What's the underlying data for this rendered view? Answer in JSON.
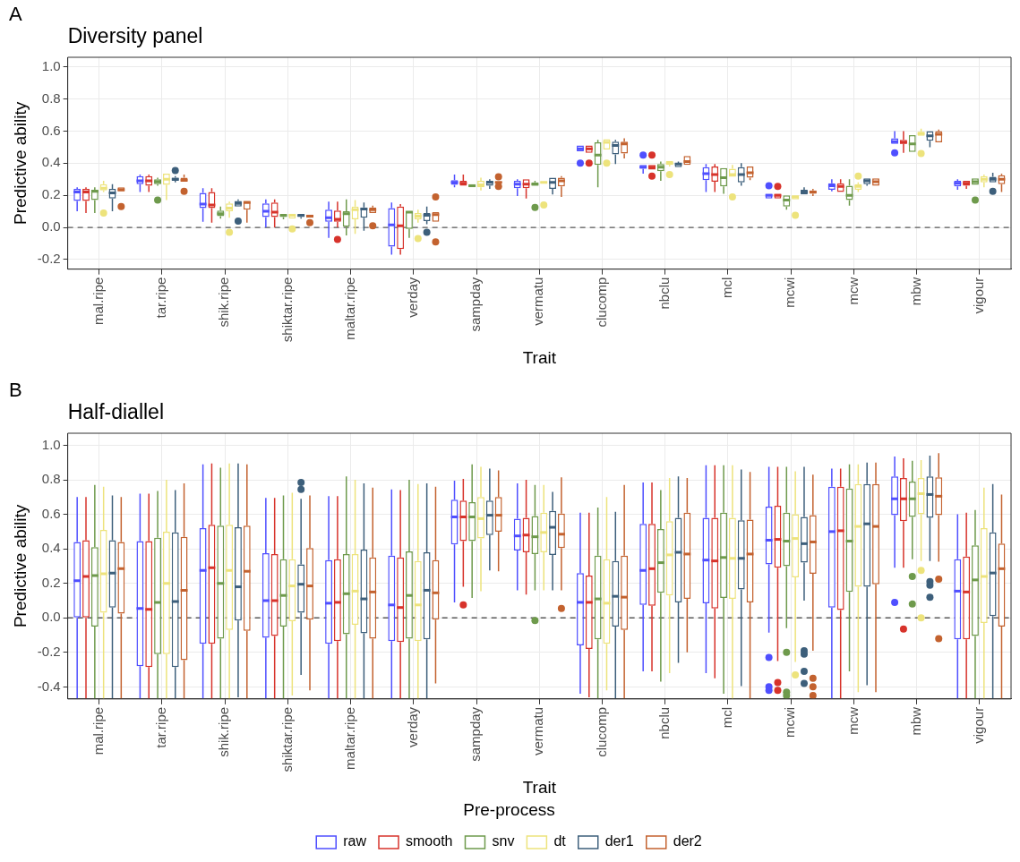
{
  "chart_data": [
    {
      "type": "box",
      "title": "Diversity panel",
      "xlabel": "Trait",
      "ylabel": "Predictive ability",
      "annotations": [
        "A"
      ],
      "categories": [
        "mal.ripe",
        "tar.ripe",
        "shik.ripe",
        "shiktar.ripe",
        "maltar.ripe",
        "verday",
        "sampday",
        "vermatu",
        "clucomp",
        "nbclu",
        "mcl",
        "mcwi",
        "mcw",
        "mbw",
        "vigour"
      ],
      "ylim": [
        -0.26,
        1.06
      ],
      "yticks": [
        {
          "value": -0.2,
          "label": "-0.2"
        },
        {
          "value": 0,
          "label": "0.0"
        },
        {
          "value": 0.2,
          "label": "0.2"
        },
        {
          "value": 0.4,
          "label": "0.4"
        },
        {
          "value": 0.6,
          "label": "0.6"
        },
        {
          "value": 0.8,
          "label": "0.8"
        },
        {
          "value": 1,
          "label": "1.0"
        }
      ],
      "grid": true,
      "legend": false,
      "ref_lines": [
        {
          "axis": "y",
          "value": 0,
          "line_style": "dashed",
          "color": "#595959"
        }
      ],
      "series": [
        {
          "color": "#4f4fff",
          "boxes": [
            {
              "low": 0.1,
              "q1": 0.165,
              "median": 0.22,
              "q3": 0.24,
              "high": 0.25
            },
            {
              "low": 0.22,
              "q1": 0.27,
              "median": 0.29,
              "q3": 0.32,
              "high": 0.33
            },
            {
              "low": 0.035,
              "q1": 0.12,
              "median": 0.145,
              "q3": 0.215,
              "high": 0.245
            },
            {
              "low": 0.0,
              "q1": 0.065,
              "median": 0.1,
              "q3": 0.15,
              "high": 0.175
            },
            {
              "low": -0.065,
              "q1": 0.035,
              "median": 0.06,
              "q3": 0.11,
              "high": 0.16
            },
            {
              "low": -0.17,
              "q1": -0.12,
              "median": 0.015,
              "q3": 0.12,
              "high": 0.155
            },
            {
              "low": 0.25,
              "q1": 0.265,
              "median": 0.28,
              "q3": 0.295,
              "high": 0.33
            },
            {
              "low": 0.195,
              "q1": 0.245,
              "median": 0.27,
              "q3": 0.29,
              "high": 0.3
            },
            {
              "low": 0.475,
              "q1": 0.475,
              "median": 0.49,
              "q3": 0.51,
              "high": 0.51,
              "outliers": [
                0.4
              ]
            },
            {
              "low": 0.335,
              "q1": 0.365,
              "median": 0.375,
              "q3": 0.39,
              "high": 0.39,
              "outliers": [
                0.45
              ]
            },
            {
              "low": 0.22,
              "q1": 0.295,
              "median": 0.335,
              "q3": 0.375,
              "high": 0.395
            },
            {
              "low": 0.18,
              "q1": 0.18,
              "median": 0.2,
              "q3": 0.21,
              "high": 0.21,
              "outliers": [
                0.26
              ]
            },
            {
              "low": 0.225,
              "q1": 0.235,
              "median": 0.26,
              "q3": 0.275,
              "high": 0.3
            },
            {
              "low": 0.52,
              "q1": 0.52,
              "median": 0.535,
              "q3": 0.555,
              "high": 0.6,
              "outliers": [
                0.465
              ]
            },
            {
              "low": 0.235,
              "q1": 0.255,
              "median": 0.275,
              "q3": 0.29,
              "high": 0.3
            }
          ]
        },
        {
          "color": "#d7332b",
          "boxes": [
            {
              "low": 0.09,
              "q1": 0.165,
              "median": 0.22,
              "q3": 0.24,
              "high": 0.25
            },
            {
              "low": 0.22,
              "q1": 0.26,
              "median": 0.29,
              "q3": 0.32,
              "high": 0.33
            },
            {
              "low": 0.03,
              "q1": 0.12,
              "median": 0.14,
              "q3": 0.22,
              "high": 0.245
            },
            {
              "low": 0.0,
              "q1": 0.065,
              "median": 0.095,
              "q3": 0.155,
              "high": 0.175
            },
            {
              "low": 0.0,
              "q1": 0.035,
              "median": 0.05,
              "q3": 0.105,
              "high": 0.16,
              "outliers": [
                -0.075
              ]
            },
            {
              "low": -0.17,
              "q1": -0.135,
              "median": 0.01,
              "q3": 0.13,
              "high": 0.145
            },
            {
              "low": 0.26,
              "q1": 0.26,
              "median": 0.275,
              "q3": 0.29,
              "high": 0.33
            },
            {
              "low": 0.18,
              "q1": 0.245,
              "median": 0.27,
              "q3": 0.3,
              "high": 0.3
            },
            {
              "low": 0.465,
              "q1": 0.465,
              "median": 0.49,
              "q3": 0.51,
              "high": 0.51,
              "outliers": [
                0.4
              ]
            },
            {
              "low": 0.36,
              "q1": 0.36,
              "median": 0.375,
              "q3": 0.39,
              "high": 0.39,
              "outliers": [
                0.45,
                0.32
              ]
            },
            {
              "low": 0.22,
              "q1": 0.285,
              "median": 0.33,
              "q3": 0.38,
              "high": 0.395
            },
            {
              "low": 0.18,
              "q1": 0.18,
              "median": 0.2,
              "q3": 0.21,
              "high": 0.21,
              "outliers": [
                0.255
              ]
            },
            {
              "low": 0.22,
              "q1": 0.22,
              "median": 0.255,
              "q3": 0.275,
              "high": 0.3
            },
            {
              "low": 0.465,
              "q1": 0.52,
              "median": 0.53,
              "q3": 0.545,
              "high": 0.6
            },
            {
              "low": 0.24,
              "q1": 0.26,
              "median": 0.275,
              "q3": 0.29,
              "high": 0.29
            }
          ]
        },
        {
          "color": "#6e9a4c",
          "boxes": [
            {
              "low": 0.09,
              "q1": 0.17,
              "median": 0.225,
              "q3": 0.235,
              "high": 0.25
            },
            {
              "low": 0.26,
              "q1": 0.27,
              "median": 0.285,
              "q3": 0.3,
              "high": 0.31,
              "outliers": [
                0.17
              ]
            },
            {
              "low": 0.055,
              "q1": 0.07,
              "median": 0.085,
              "q3": 0.105,
              "high": 0.13
            },
            {
              "low": 0.05,
              "q1": 0.065,
              "median": 0.075,
              "q3": 0.08,
              "high": 0.08
            },
            {
              "low": -0.05,
              "q1": 0.005,
              "median": 0.085,
              "q3": 0.1,
              "high": 0.175
            },
            {
              "low": -0.065,
              "q1": -0.01,
              "median": 0.095,
              "q3": 0.1,
              "high": 0.1
            },
            {
              "low": 0.25,
              "q1": 0.25,
              "median": 0.26,
              "q3": 0.27,
              "high": 0.27
            },
            {
              "low": 0.26,
              "q1": 0.26,
              "median": 0.27,
              "q3": 0.28,
              "high": 0.29,
              "outliers": [
                0.125
              ]
            },
            {
              "low": 0.25,
              "q1": 0.39,
              "median": 0.45,
              "q3": 0.53,
              "high": 0.545
            },
            {
              "low": 0.29,
              "q1": 0.35,
              "median": 0.375,
              "q3": 0.395,
              "high": 0.41
            },
            {
              "low": 0.21,
              "q1": 0.255,
              "median": 0.31,
              "q3": 0.37,
              "high": 0.37
            },
            {
              "low": 0.11,
              "q1": 0.13,
              "median": 0.17,
              "q3": 0.2,
              "high": 0.2
            },
            {
              "low": 0.135,
              "q1": 0.17,
              "median": 0.2,
              "q3": 0.26,
              "high": 0.3
            },
            {
              "low": 0.47,
              "q1": 0.47,
              "median": 0.52,
              "q3": 0.575,
              "high": 0.575
            },
            {
              "low": 0.265,
              "q1": 0.265,
              "median": 0.285,
              "q3": 0.305,
              "high": 0.305,
              "outliers": [
                0.17
              ]
            }
          ]
        },
        {
          "color": "#ede37c",
          "boxes": [
            {
              "low": 0.22,
              "q1": 0.23,
              "median": 0.245,
              "q3": 0.27,
              "high": 0.29,
              "outliers": [
                0.09
              ]
            },
            {
              "low": 0.17,
              "q1": 0.265,
              "median": 0.3,
              "q3": 0.335,
              "high": 0.335
            },
            {
              "low": 0.06,
              "q1": 0.1,
              "median": 0.12,
              "q3": 0.15,
              "high": 0.16,
              "outliers": [
                -0.03
              ]
            },
            {
              "low": 0.055,
              "q1": 0.055,
              "median": 0.075,
              "q3": 0.085,
              "high": 0.085,
              "outliers": [
                -0.01
              ]
            },
            {
              "low": -0.04,
              "q1": 0.05,
              "median": 0.11,
              "q3": 0.13,
              "high": 0.17
            },
            {
              "low": 0.03,
              "q1": 0.05,
              "median": 0.07,
              "q3": 0.09,
              "high": 0.11,
              "outliers": [
                -0.07
              ]
            },
            {
              "low": 0.23,
              "q1": 0.25,
              "median": 0.265,
              "q3": 0.29,
              "high": 0.31
            },
            {
              "low": 0.275,
              "q1": 0.275,
              "median": 0.28,
              "q3": 0.285,
              "high": 0.285,
              "outliers": [
                0.14
              ]
            },
            {
              "low": 0.485,
              "q1": 0.485,
              "median": 0.53,
              "q3": 0.55,
              "high": 0.55,
              "outliers": [
                0.4
              ]
            },
            {
              "low": 0.38,
              "q1": 0.39,
              "median": 0.4,
              "q3": 0.415,
              "high": 0.415,
              "outliers": [
                0.33
              ]
            },
            {
              "low": 0.315,
              "q1": 0.315,
              "median": 0.33,
              "q3": 0.365,
              "high": 0.39,
              "outliers": [
                0.19
              ]
            },
            {
              "low": 0.175,
              "q1": 0.175,
              "median": 0.19,
              "q3": 0.2,
              "high": 0.2,
              "outliers": [
                0.075
              ]
            },
            {
              "low": 0.22,
              "q1": 0.235,
              "median": 0.255,
              "q3": 0.27,
              "high": 0.28,
              "outliers": [
                0.32
              ]
            },
            {
              "low": 0.57,
              "q1": 0.57,
              "median": 0.585,
              "q3": 0.595,
              "high": 0.615,
              "outliers": [
                0.46
              ]
            },
            {
              "low": 0.25,
              "q1": 0.28,
              "median": 0.3,
              "q3": 0.32,
              "high": 0.33
            }
          ]
        },
        {
          "color": "#3d5f7b",
          "boxes": [
            {
              "low": 0.1,
              "q1": 0.18,
              "median": 0.215,
              "q3": 0.24,
              "high": 0.27
            },
            {
              "low": 0.28,
              "q1": 0.29,
              "median": 0.3,
              "q3": 0.31,
              "high": 0.32,
              "outliers": [
                0.355
              ]
            },
            {
              "low": 0.13,
              "q1": 0.13,
              "median": 0.15,
              "q3": 0.165,
              "high": 0.175,
              "outliers": [
                0.04
              ]
            },
            {
              "low": 0.055,
              "q1": 0.065,
              "median": 0.075,
              "q3": 0.08,
              "high": 0.08
            },
            {
              "low": -0.02,
              "q1": 0.06,
              "median": 0.115,
              "q3": 0.125,
              "high": 0.155
            },
            {
              "low": 0.02,
              "q1": 0.04,
              "median": 0.075,
              "q3": 0.09,
              "high": 0.13,
              "outliers": [
                -0.03
              ]
            },
            {
              "low": 0.24,
              "q1": 0.26,
              "median": 0.28,
              "q3": 0.29,
              "high": 0.3
            },
            {
              "low": 0.205,
              "q1": 0.24,
              "median": 0.28,
              "q3": 0.31,
              "high": 0.31
            },
            {
              "low": 0.395,
              "q1": 0.455,
              "median": 0.51,
              "q3": 0.535,
              "high": 0.545
            },
            {
              "low": 0.375,
              "q1": 0.375,
              "median": 0.395,
              "q3": 0.4,
              "high": 0.41
            },
            {
              "low": 0.26,
              "q1": 0.28,
              "median": 0.33,
              "q3": 0.375,
              "high": 0.4
            },
            {
              "low": 0.205,
              "q1": 0.205,
              "median": 0.22,
              "q3": 0.235,
              "high": 0.25
            },
            {
              "low": 0.26,
              "q1": 0.27,
              "median": 0.29,
              "q3": 0.305,
              "high": 0.305
            },
            {
              "low": 0.5,
              "q1": 0.54,
              "median": 0.57,
              "q3": 0.6,
              "high": 0.6
            },
            {
              "low": 0.28,
              "q1": 0.28,
              "median": 0.3,
              "q3": 0.315,
              "high": 0.34,
              "outliers": [
                0.225
              ]
            }
          ]
        },
        {
          "color": "#c3622f",
          "boxes": [
            {
              "low": 0.225,
              "q1": 0.225,
              "median": 0.235,
              "q3": 0.25,
              "high": 0.25,
              "outliers": [
                0.13
              ]
            },
            {
              "low": 0.285,
              "q1": 0.285,
              "median": 0.295,
              "q3": 0.31,
              "high": 0.33,
              "outliers": [
                0.225
              ]
            },
            {
              "low": 0.03,
              "q1": 0.11,
              "median": 0.155,
              "q3": 0.165,
              "high": 0.165
            },
            {
              "low": 0.06,
              "q1": 0.06,
              "median": 0.07,
              "q3": 0.08,
              "high": 0.08,
              "outliers": [
                0.03
              ]
            },
            {
              "low": 0.09,
              "q1": 0.09,
              "median": 0.11,
              "q3": 0.125,
              "high": 0.135,
              "outliers": [
                0.01
              ]
            },
            {
              "low": 0.035,
              "q1": 0.035,
              "median": 0.08,
              "q3": 0.095,
              "high": 0.095,
              "outliers": [
                0.19,
                -0.09
              ]
            },
            {
              "low": 0.275,
              "q1": 0.275,
              "median": 0.28,
              "q3": 0.285,
              "high": 0.285,
              "outliers": [
                0.315,
                0.255
              ]
            },
            {
              "low": 0.19,
              "q1": 0.255,
              "median": 0.29,
              "q3": 0.31,
              "high": 0.32
            },
            {
              "low": 0.43,
              "q1": 0.46,
              "median": 0.52,
              "q3": 0.535,
              "high": 0.555
            },
            {
              "low": 0.39,
              "q1": 0.39,
              "median": 0.41,
              "q3": 0.445,
              "high": 0.445
            },
            {
              "low": 0.295,
              "q1": 0.31,
              "median": 0.34,
              "q3": 0.38,
              "high": 0.38
            },
            {
              "low": 0.195,
              "q1": 0.21,
              "median": 0.22,
              "q3": 0.23,
              "high": 0.24
            },
            {
              "low": 0.26,
              "q1": 0.26,
              "median": 0.285,
              "q3": 0.305,
              "high": 0.305
            },
            {
              "low": 0.53,
              "q1": 0.53,
              "median": 0.58,
              "q3": 0.6,
              "high": 0.61
            },
            {
              "low": 0.22,
              "q1": 0.27,
              "median": 0.3,
              "q3": 0.325,
              "high": 0.335
            }
          ]
        }
      ]
    },
    {
      "type": "box",
      "title": "Half-diallel",
      "xlabel": "Trait",
      "ylabel": "Predictive ability",
      "annotations": [
        "B"
      ],
      "legend_title": "Pre-process",
      "categories": [
        "mal.ripe",
        "tar.ripe",
        "shik.ripe",
        "shiktar.ripe",
        "maltar.ripe",
        "verday",
        "sampday",
        "vermatu",
        "clucomp",
        "nbclu",
        "mcl",
        "mcwi",
        "mcw",
        "mbw",
        "vigour"
      ],
      "ylim": [
        -0.47,
        1.07
      ],
      "yticks": [
        {
          "value": -0.4,
          "label": "-0.4"
        },
        {
          "value": -0.2,
          "label": "-0.2"
        },
        {
          "value": 0,
          "label": "0.0"
        },
        {
          "value": 0.2,
          "label": "0.2"
        },
        {
          "value": 0.4,
          "label": "0.4"
        },
        {
          "value": 0.6,
          "label": "0.6"
        },
        {
          "value": 0.8,
          "label": "0.8"
        },
        {
          "value": 1,
          "label": "1.0"
        }
      ],
      "grid": true,
      "legend": "bottom",
      "ref_lines": [
        {
          "axis": "y",
          "value": 0,
          "line_style": "dashed",
          "color": "#595959"
        }
      ],
      "series": [
        {
          "name": "raw",
          "color": "#4f4fff",
          "boxes": [
            {
              "low": -0.47,
              "q1": 0.0,
              "median": 0.215,
              "q3": 0.44,
              "high": 0.7
            },
            {
              "low": -0.47,
              "q1": -0.28,
              "median": 0.055,
              "q3": 0.445,
              "high": 0.72
            },
            {
              "low": -0.47,
              "q1": -0.15,
              "median": 0.275,
              "q3": 0.52,
              "high": 0.89
            },
            {
              "low": -0.47,
              "q1": -0.115,
              "median": 0.1,
              "q3": 0.375,
              "high": 0.695
            },
            {
              "low": -0.47,
              "q1": -0.15,
              "median": 0.085,
              "q3": 0.335,
              "high": 0.705
            },
            {
              "low": -0.47,
              "q1": -0.135,
              "median": 0.075,
              "q3": 0.36,
              "high": 0.745
            },
            {
              "low": 0.09,
              "q1": 0.425,
              "median": 0.585,
              "q3": 0.685,
              "high": 0.795
            },
            {
              "low": 0.16,
              "q1": 0.39,
              "median": 0.475,
              "q3": 0.575,
              "high": 0.78
            },
            {
              "low": -0.44,
              "q1": -0.16,
              "median": 0.09,
              "q3": 0.26,
              "high": 0.61
            },
            {
              "low": -0.31,
              "q1": 0.075,
              "median": 0.275,
              "q3": 0.545,
              "high": 0.785
            },
            {
              "low": -0.32,
              "q1": 0.085,
              "median": 0.335,
              "q3": 0.58,
              "high": 0.885
            },
            {
              "low": -0.085,
              "q1": 0.31,
              "median": 0.45,
              "q3": 0.645,
              "high": 0.875,
              "outliers": [
                -0.23,
                -0.4,
                -0.42
              ]
            },
            {
              "low": -0.47,
              "q1": 0.06,
              "median": 0.5,
              "q3": 0.76,
              "high": 0.865
            },
            {
              "low": 0.29,
              "q1": 0.595,
              "median": 0.69,
              "q3": 0.82,
              "high": 0.935,
              "outliers": [
                0.09
              ]
            },
            {
              "low": -0.47,
              "q1": -0.125,
              "median": 0.155,
              "q3": 0.34,
              "high": 0.6
            }
          ]
        },
        {
          "name": "smooth",
          "color": "#d7332b",
          "boxes": [
            {
              "low": -0.47,
              "q1": 0.0,
              "median": 0.24,
              "q3": 0.45,
              "high": 0.7
            },
            {
              "low": -0.47,
              "q1": -0.285,
              "median": 0.05,
              "q3": 0.445,
              "high": 0.72
            },
            {
              "low": -0.47,
              "q1": -0.15,
              "median": 0.29,
              "q3": 0.54,
              "high": 0.895
            },
            {
              "low": -0.47,
              "q1": -0.105,
              "median": 0.1,
              "q3": 0.37,
              "high": 0.695
            },
            {
              "low": -0.47,
              "q1": -0.135,
              "median": 0.09,
              "q3": 0.34,
              "high": 0.705
            },
            {
              "low": -0.47,
              "q1": -0.14,
              "median": 0.06,
              "q3": 0.35,
              "high": 0.74
            },
            {
              "low": 0.18,
              "q1": 0.445,
              "median": 0.585,
              "q3": 0.68,
              "high": 0.805,
              "outliers": [
                0.075
              ]
            },
            {
              "low": 0.135,
              "q1": 0.38,
              "median": 0.48,
              "q3": 0.58,
              "high": 0.8
            },
            {
              "low": -0.46,
              "q1": -0.18,
              "median": 0.09,
              "q3": 0.245,
              "high": 0.61
            },
            {
              "low": -0.31,
              "q1": 0.07,
              "median": 0.285,
              "q3": 0.545,
              "high": 0.785
            },
            {
              "low": -0.35,
              "q1": 0.055,
              "median": 0.33,
              "q3": 0.58,
              "high": 0.885
            },
            {
              "low": -0.25,
              "q1": 0.29,
              "median": 0.455,
              "q3": 0.65,
              "high": 0.875,
              "outliers": [
                -0.375,
                -0.42
              ]
            },
            {
              "low": -0.47,
              "q1": 0.045,
              "median": 0.505,
              "q3": 0.76,
              "high": 0.865
            },
            {
              "low": 0.29,
              "q1": 0.56,
              "median": 0.69,
              "q3": 0.81,
              "high": 0.925,
              "outliers": [
                -0.065
              ]
            },
            {
              "low": -0.47,
              "q1": -0.125,
              "median": 0.15,
              "q3": 0.355,
              "high": 0.61
            }
          ]
        },
        {
          "name": "snv",
          "color": "#6e9a4c",
          "boxes": [
            {
              "low": -0.47,
              "q1": -0.05,
              "median": 0.245,
              "q3": 0.41,
              "high": 0.77
            },
            {
              "low": -0.47,
              "q1": -0.21,
              "median": 0.09,
              "q3": 0.465,
              "high": 0.735
            },
            {
              "low": -0.47,
              "q1": -0.12,
              "median": 0.2,
              "q3": 0.535,
              "high": 0.87
            },
            {
              "low": -0.47,
              "q1": -0.05,
              "median": 0.13,
              "q3": 0.34,
              "high": 0.71
            },
            {
              "low": -0.47,
              "q1": -0.095,
              "median": 0.14,
              "q3": 0.37,
              "high": 0.82
            },
            {
              "low": -0.47,
              "q1": -0.12,
              "median": 0.13,
              "q3": 0.385,
              "high": 0.8
            },
            {
              "low": 0.115,
              "q1": 0.445,
              "median": 0.585,
              "q3": 0.67,
              "high": 0.89
            },
            {
              "low": 0.16,
              "q1": 0.37,
              "median": 0.47,
              "q3": 0.59,
              "high": 0.77,
              "outliers": [
                -0.015
              ]
            },
            {
              "low": -0.47,
              "q1": -0.125,
              "median": 0.11,
              "q3": 0.36,
              "high": 0.64
            },
            {
              "low": -0.37,
              "q1": 0.145,
              "median": 0.32,
              "q3": 0.515,
              "high": 0.74
            },
            {
              "low": -0.44,
              "q1": 0.115,
              "median": 0.35,
              "q3": 0.61,
              "high": 0.885
            },
            {
              "low": -0.06,
              "q1": 0.3,
              "median": 0.445,
              "q3": 0.61,
              "high": 0.875,
              "outliers": [
                -0.2,
                -0.43,
                -0.45
              ]
            },
            {
              "low": -0.31,
              "q1": 0.15,
              "median": 0.445,
              "q3": 0.75,
              "high": 0.89
            },
            {
              "low": 0.34,
              "q1": 0.585,
              "median": 0.69,
              "q3": 0.79,
              "high": 0.91,
              "outliers": [
                0.24,
                0.08
              ]
            },
            {
              "low": -0.47,
              "q1": -0.105,
              "median": 0.22,
              "q3": 0.42,
              "high": 0.625
            }
          ]
        },
        {
          "name": "dt",
          "color": "#ede37c",
          "boxes": [
            {
              "low": -0.47,
              "q1": 0.03,
              "median": 0.255,
              "q3": 0.51,
              "high": 0.76
            },
            {
              "low": -0.47,
              "q1": -0.21,
              "median": 0.2,
              "q3": 0.5,
              "high": 0.8
            },
            {
              "low": -0.47,
              "q1": -0.07,
              "median": 0.275,
              "q3": 0.54,
              "high": 0.895
            },
            {
              "low": -0.45,
              "q1": -0.02,
              "median": 0.185,
              "q3": 0.34,
              "high": 0.725
            },
            {
              "low": -0.47,
              "q1": -0.04,
              "median": 0.155,
              "q3": 0.37,
              "high": 0.8
            },
            {
              "low": -0.47,
              "q1": -0.135,
              "median": 0.075,
              "q3": 0.33,
              "high": 0.775
            },
            {
              "low": 0.155,
              "q1": 0.46,
              "median": 0.575,
              "q3": 0.7,
              "high": 0.875
            },
            {
              "low": 0.16,
              "q1": 0.38,
              "median": 0.495,
              "q3": 0.61,
              "high": 0.77
            },
            {
              "low": -0.42,
              "q1": -0.15,
              "median": 0.085,
              "q3": 0.34,
              "high": 0.7
            },
            {
              "low": -0.32,
              "q1": 0.13,
              "median": 0.365,
              "q3": 0.56,
              "high": 0.81
            },
            {
              "low": -0.47,
              "q1": 0.11,
              "median": 0.345,
              "q3": 0.58,
              "high": 0.885
            },
            {
              "low": -0.255,
              "q1": 0.235,
              "median": 0.46,
              "q3": 0.6,
              "high": 0.85,
              "outliers": [
                -0.33
              ]
            },
            {
              "low": -0.43,
              "q1": 0.18,
              "median": 0.53,
              "q3": 0.775,
              "high": 0.89
            },
            {
              "low": 0.33,
              "q1": 0.6,
              "median": 0.72,
              "q3": 0.81,
              "high": 0.915,
              "outliers": [
                0.275,
                0.0
              ]
            },
            {
              "low": -0.47,
              "q1": -0.03,
              "median": 0.24,
              "q3": 0.52,
              "high": 0.755
            }
          ]
        },
        {
          "name": "der1",
          "color": "#3d5f7b",
          "boxes": [
            {
              "low": -0.47,
              "q1": 0.06,
              "median": 0.26,
              "q3": 0.45,
              "high": 0.71
            },
            {
              "low": -0.47,
              "q1": -0.285,
              "median": 0.095,
              "q3": 0.495,
              "high": 0.74
            },
            {
              "low": -0.46,
              "q1": -0.015,
              "median": 0.18,
              "q3": 0.525,
              "high": 0.895
            },
            {
              "low": -0.33,
              "q1": 0.03,
              "median": 0.195,
              "q3": 0.31,
              "high": 0.69,
              "outliers": [
                0.785,
                0.745
              ]
            },
            {
              "low": -0.47,
              "q1": -0.09,
              "median": 0.11,
              "q3": 0.395,
              "high": 0.78
            },
            {
              "low": -0.47,
              "q1": -0.125,
              "median": 0.16,
              "q3": 0.38,
              "high": 0.78
            },
            {
              "low": 0.275,
              "q1": 0.48,
              "median": 0.595,
              "q3": 0.68,
              "high": 0.865
            },
            {
              "low": 0.16,
              "q1": 0.365,
              "median": 0.525,
              "q3": 0.62,
              "high": 0.73
            },
            {
              "low": -0.47,
              "q1": -0.05,
              "median": 0.125,
              "q3": 0.33,
              "high": 0.615
            },
            {
              "low": -0.26,
              "q1": 0.09,
              "median": 0.38,
              "q3": 0.58,
              "high": 0.82
            },
            {
              "low": -0.395,
              "q1": 0.165,
              "median": 0.345,
              "q3": 0.565,
              "high": 0.86
            },
            {
              "low": 0.1,
              "q1": 0.32,
              "median": 0.43,
              "q3": 0.585,
              "high": 0.875,
              "outliers": [
                -0.19,
                -0.21,
                -0.31,
                -0.38
              ]
            },
            {
              "low": -0.39,
              "q1": 0.18,
              "median": 0.545,
              "q3": 0.775,
              "high": 0.9
            },
            {
              "low": 0.33,
              "q1": 0.58,
              "median": 0.715,
              "q3": 0.82,
              "high": 0.94,
              "outliers": [
                0.21,
                0.19,
                0.12
              ]
            },
            {
              "low": -0.47,
              "q1": 0.01,
              "median": 0.26,
              "q3": 0.495,
              "high": 0.775
            }
          ]
        },
        {
          "name": "der2",
          "color": "#c3622f",
          "boxes": [
            {
              "low": -0.47,
              "q1": 0.025,
              "median": 0.285,
              "q3": 0.44,
              "high": 0.7
            },
            {
              "low": -0.47,
              "q1": -0.245,
              "median": 0.16,
              "q3": 0.47,
              "high": 0.78
            },
            {
              "low": -0.47,
              "q1": -0.075,
              "median": 0.27,
              "q3": 0.535,
              "high": 0.89
            },
            {
              "low": -0.42,
              "q1": -0.01,
              "median": 0.185,
              "q3": 0.405,
              "high": 0.71
            },
            {
              "low": -0.47,
              "q1": -0.12,
              "median": 0.15,
              "q3": 0.35,
              "high": 0.755
            },
            {
              "low": -0.38,
              "q1": -0.01,
              "median": 0.145,
              "q3": 0.335,
              "high": 0.76
            },
            {
              "low": 0.27,
              "q1": 0.5,
              "median": 0.595,
              "q3": 0.7,
              "high": 0.855
            },
            {
              "low": 0.16,
              "q1": 0.405,
              "median": 0.485,
              "q3": 0.605,
              "high": 0.815,
              "outliers": [
                0.055
              ]
            },
            {
              "low": -0.47,
              "q1": -0.07,
              "median": 0.12,
              "q3": 0.36,
              "high": 0.77
            },
            {
              "low": -0.2,
              "q1": 0.11,
              "median": 0.37,
              "q3": 0.61,
              "high": 0.81
            },
            {
              "low": -0.47,
              "q1": 0.09,
              "median": 0.37,
              "q3": 0.57,
              "high": 0.845
            },
            {
              "low": -0.19,
              "q1": 0.255,
              "median": 0.44,
              "q3": 0.595,
              "high": 0.83,
              "outliers": [
                -0.35,
                -0.4,
                -0.45
              ]
            },
            {
              "low": -0.43,
              "q1": 0.195,
              "median": 0.53,
              "q3": 0.775,
              "high": 0.9
            },
            {
              "low": 0.325,
              "q1": 0.595,
              "median": 0.705,
              "q3": 0.815,
              "high": 0.955,
              "outliers": [
                0.225,
                -0.12
              ]
            },
            {
              "low": -0.47,
              "q1": -0.05,
              "median": 0.285,
              "q3": 0.43,
              "high": 0.715
            }
          ]
        }
      ]
    }
  ]
}
